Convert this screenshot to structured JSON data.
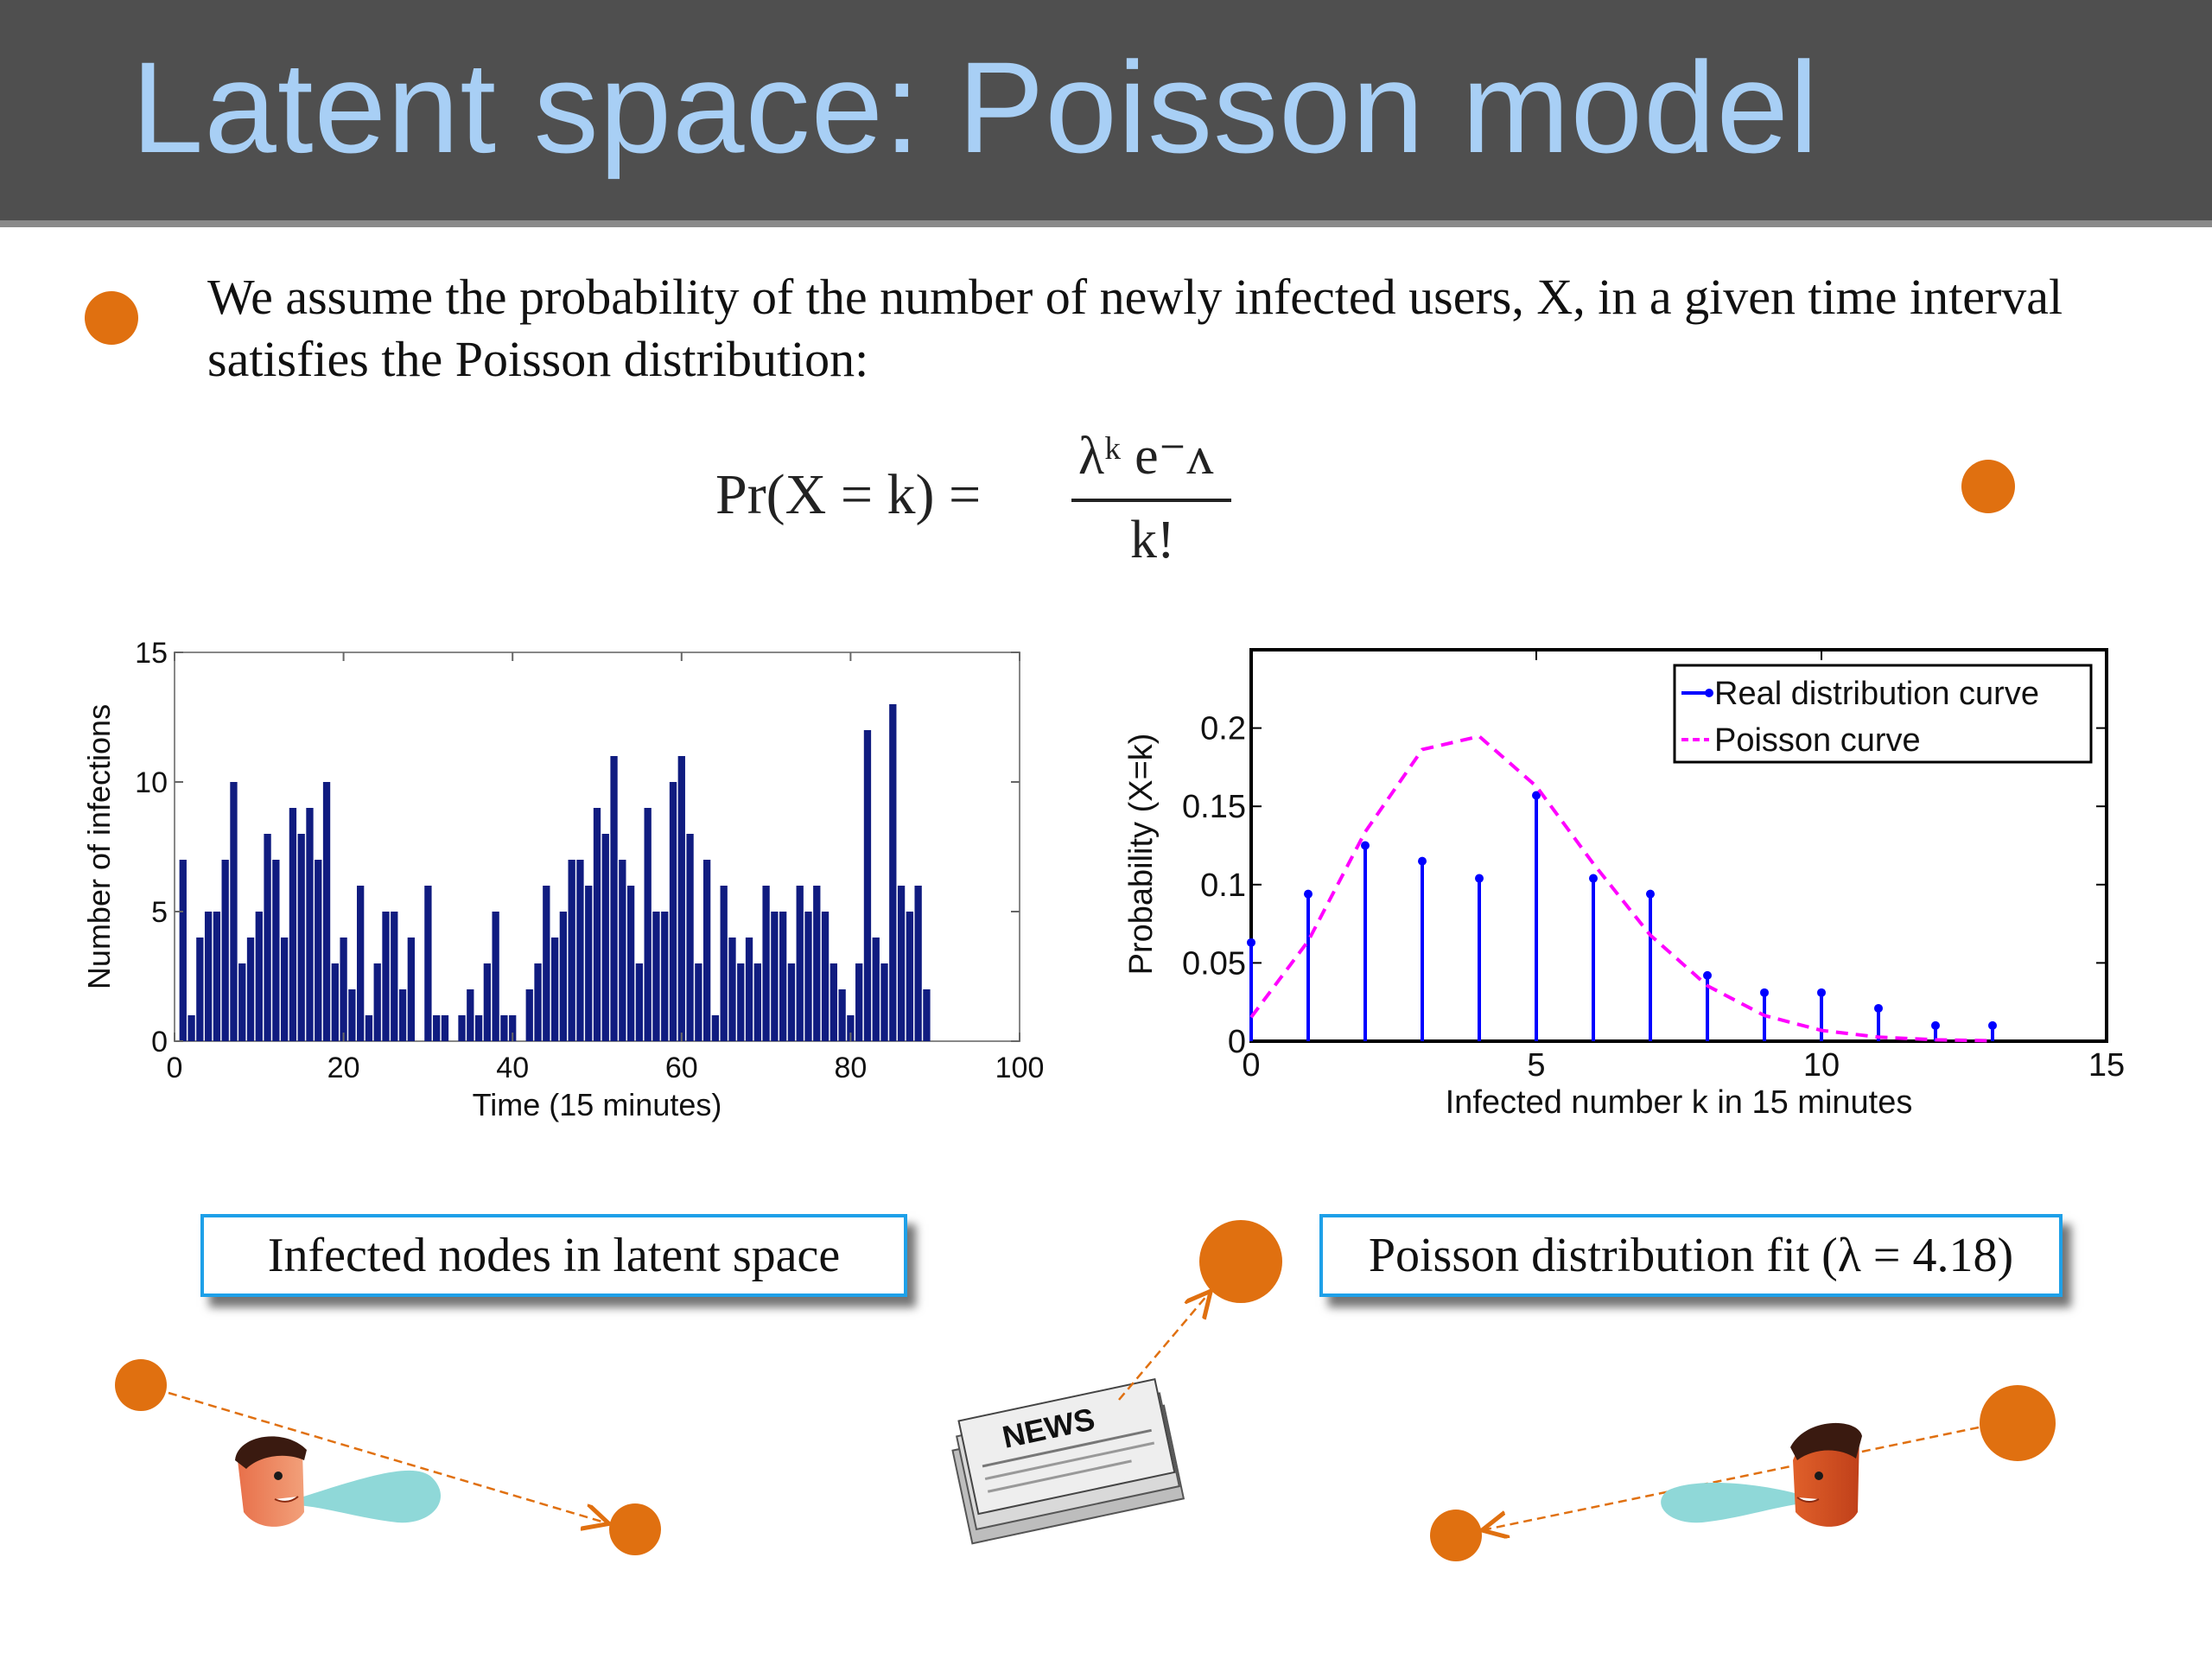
{
  "slide": {
    "title": "Latent space: Poisson model",
    "body": "We assume the probability of the number of newly infected users, X, in a given time interval satisfies the Poisson distribution:",
    "formula": {
      "lhs": "Pr(X = k) =",
      "numerator": "λᵏ e⁻ᴧ",
      "denominator": "k!"
    },
    "caption_left": "Infected nodes in latent space",
    "caption_right": "Poisson distribution fit (λ = 4.18)",
    "news_label": "NEWS",
    "colors": {
      "title_bar": "#4f4f4f",
      "title_text": "#a8cff5",
      "accent_dot": "#e07010",
      "caption_border": "#1ea0e8",
      "bars": "#101c80",
      "real_curve": "#0000ff",
      "poisson_curve": "#ff00ff"
    },
    "icons": [
      "orange-dot-icon",
      "person-head-icon",
      "speech-puff-icon",
      "newspaper-icon",
      "dashed-arrow-icon"
    ]
  },
  "chart_data": [
    {
      "type": "bar",
      "xlabel": "Time (15 minutes)",
      "ylabel": "Number of infections",
      "xlim": [
        0,
        100
      ],
      "ylim": [
        0,
        15
      ],
      "xticks": [
        0,
        20,
        40,
        60,
        80,
        100
      ],
      "yticks": [
        0,
        5,
        10,
        15
      ],
      "grid": false,
      "x": [
        1,
        2,
        3,
        4,
        5,
        6,
        7,
        8,
        9,
        10,
        11,
        12,
        13,
        14,
        15,
        16,
        17,
        18,
        19,
        20,
        21,
        22,
        23,
        24,
        25,
        26,
        27,
        28,
        29,
        30,
        31,
        32,
        33,
        34,
        35,
        36,
        37,
        38,
        39,
        40,
        41,
        42,
        43,
        44,
        45,
        46,
        47,
        48,
        49,
        50,
        51,
        52,
        53,
        54,
        55,
        56,
        57,
        58,
        59,
        60,
        61,
        62,
        63,
        64,
        65,
        66,
        67,
        68,
        69,
        70,
        71,
        72,
        73,
        74,
        75,
        76,
        77,
        78,
        79,
        80,
        81,
        82,
        83,
        84,
        85,
        86,
        87,
        88,
        89,
        90,
        91,
        92,
        93,
        94,
        95,
        96,
        97
      ],
      "values": [
        7,
        1,
        4,
        5,
        5,
        7,
        10,
        3,
        4,
        5,
        8,
        7,
        4,
        9,
        8,
        9,
        7,
        10,
        3,
        4,
        2,
        6,
        1,
        3,
        5,
        5,
        2,
        4,
        0,
        6,
        1,
        1,
        0,
        1,
        2,
        1,
        3,
        5,
        1,
        1,
        0,
        2,
        3,
        6,
        4,
        5,
        7,
        7,
        6,
        9,
        8,
        11,
        7,
        6,
        3,
        9,
        5,
        5,
        10,
        11,
        8,
        3,
        7,
        1,
        6,
        4,
        3,
        4,
        3,
        6,
        5,
        5,
        3,
        6,
        5,
        6,
        5,
        3,
        2,
        1,
        3,
        12,
        4,
        3,
        13,
        6,
        5,
        6,
        2,
        0,
        0,
        0,
        0,
        0,
        0,
        0,
        0
      ]
    },
    {
      "type": "line",
      "xlabel": "Infected number k in 15 minutes",
      "ylabel": "Probability (X=k)",
      "xlim": [
        0,
        15
      ],
      "ylim": [
        0,
        0.25
      ],
      "xticks": [
        0,
        5,
        10,
        15
      ],
      "yticks": [
        0,
        0.05,
        0.1,
        0.15,
        0.2
      ],
      "ytick_labels": [
        "0",
        "0.05",
        "0.1",
        "0.15",
        "0.2"
      ],
      "grid": false,
      "legend_position": "top-right",
      "series": [
        {
          "name": "Real distribution curve",
          "style": "stem",
          "x": [
            0,
            1,
            2,
            3,
            4,
            5,
            6,
            7,
            8,
            9,
            10,
            11,
            12,
            13
          ],
          "values": [
            0.063,
            0.094,
            0.125,
            0.115,
            0.104,
            0.157,
            0.104,
            0.094,
            0.042,
            0.031,
            0.031,
            0.021,
            0.01,
            0.01
          ]
        },
        {
          "name": "Poisson curve",
          "style": "dashed",
          "x": [
            0,
            1,
            2,
            3,
            4,
            5,
            6,
            7,
            8,
            9,
            10,
            11,
            12,
            13
          ],
          "values": [
            0.0153,
            0.064,
            0.1337,
            0.1863,
            0.1947,
            0.1628,
            0.1134,
            0.0677,
            0.0354,
            0.0164,
            0.0069,
            0.0026,
            0.0009,
            0.0003
          ]
        }
      ]
    }
  ]
}
